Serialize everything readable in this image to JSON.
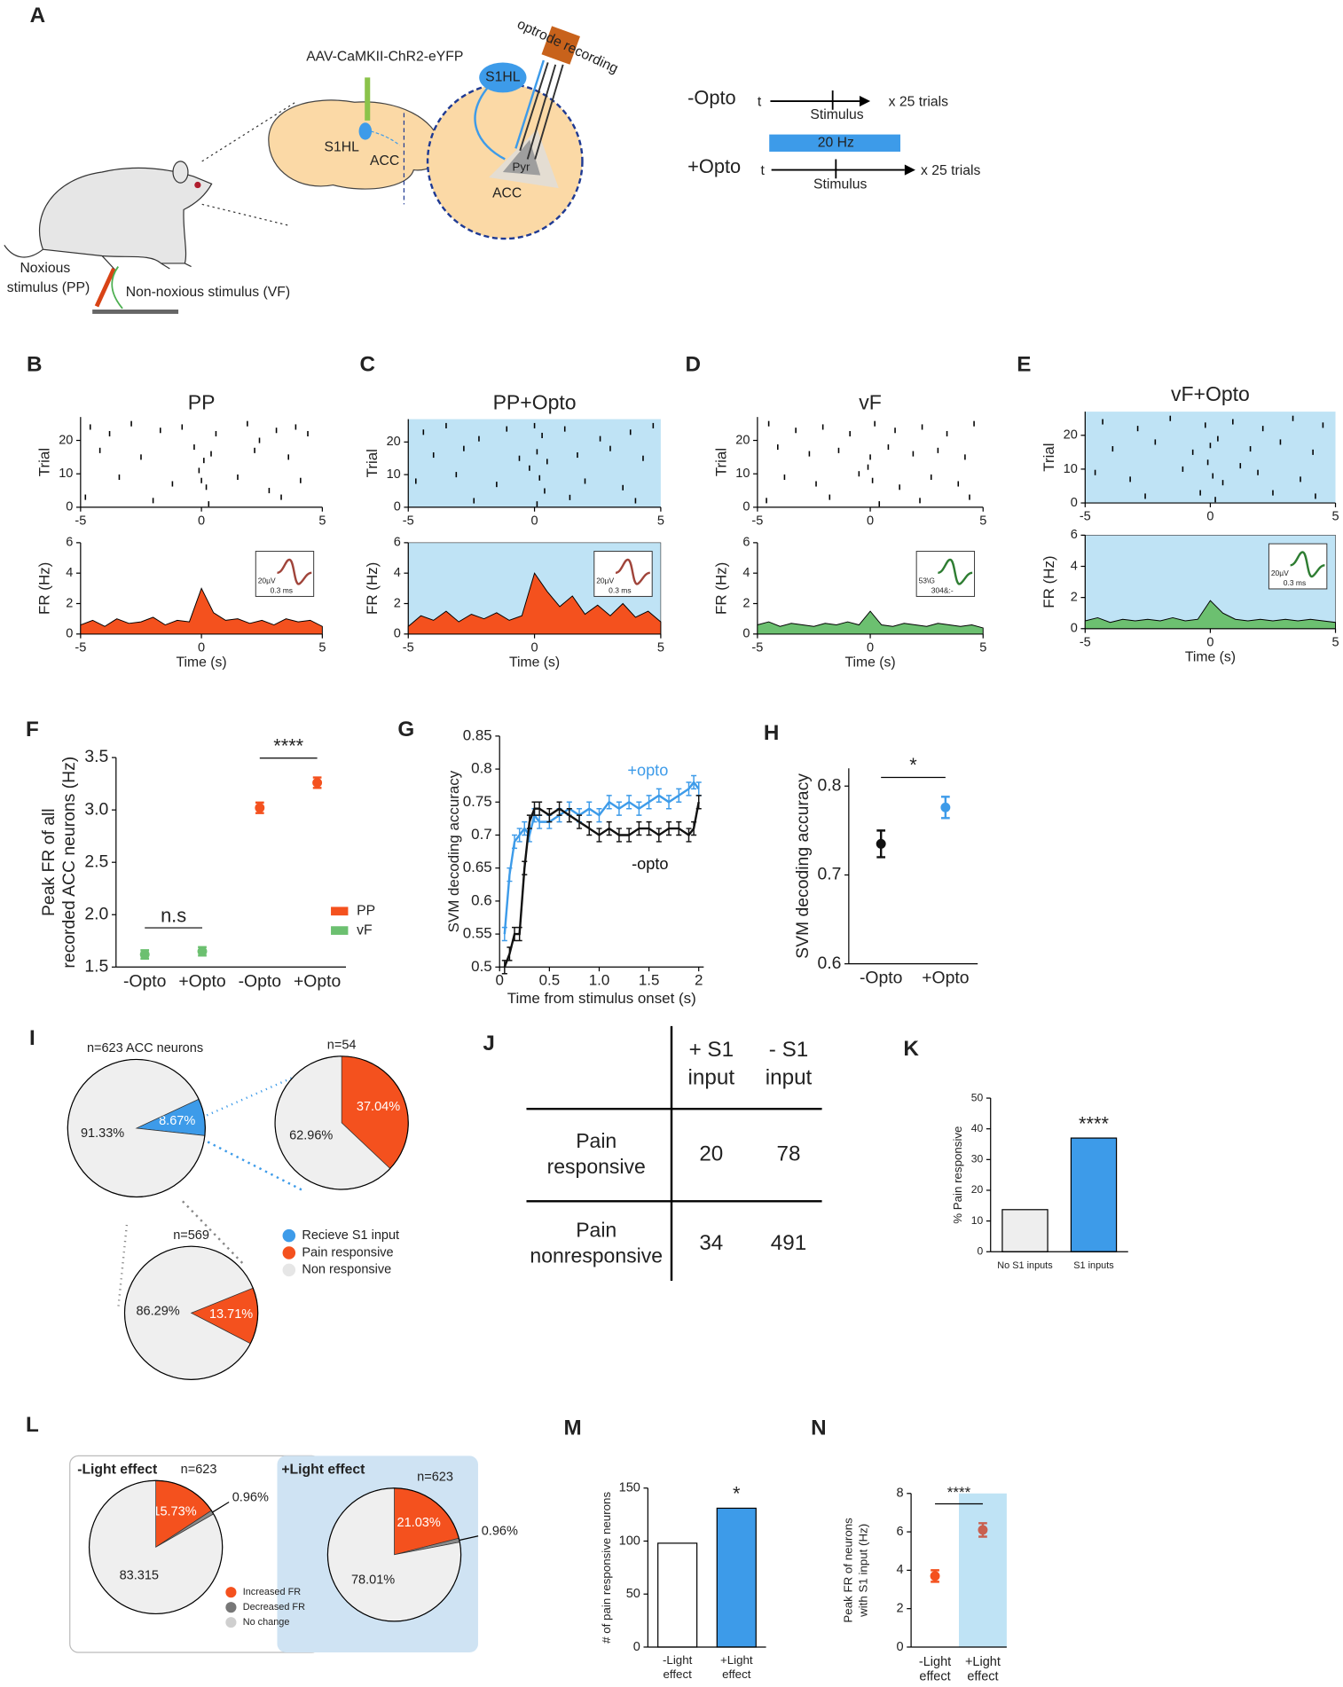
{
  "panel_labels": [
    "A",
    "B",
    "C",
    "D",
    "E",
    "F",
    "G",
    "H",
    "I",
    "J",
    "K",
    "L",
    "M",
    "N"
  ],
  "diagram": {
    "injection": "AAV-CaMKII-ChR2-eYFP",
    "brain_s1hl": "S1HL",
    "brain_acc": "ACC",
    "inset_s1hl": "S1HL",
    "inset_pyr": "Pyr",
    "inset_acc": "ACC",
    "optrode": "optrode recording",
    "noxious": [
      "Noxious",
      "stimulus (PP)"
    ],
    "non_noxious": "Non-noxious stimulus (VF)",
    "protocol": {
      "minus_opto": "-Opto",
      "plus_opto": "+Opto",
      "t": "t",
      "stimulus": "Stimulus",
      "trials": "x 25 trials",
      "light": "20 Hz"
    }
  },
  "table_j": {
    "columns": [
      [
        "+ S1",
        "input"
      ],
      [
        "- S1",
        "input"
      ]
    ],
    "rows": [
      {
        "label": [
          "Pain",
          "responsive"
        ],
        "cells": [
          20,
          78
        ]
      },
      {
        "label": [
          "Pain",
          "nonresponsive"
        ],
        "cells": [
          34,
          491
        ]
      }
    ]
  },
  "chart_data": [
    {
      "type": "raster_psth",
      "title": "PP",
      "color": "#f4511e",
      "shaded": false,
      "raster_ylabel": "Trial",
      "raster_ylim": [
        0,
        27
      ],
      "raster_yticks": [
        0,
        10,
        20
      ],
      "raster": [
        [
          -4.6,
          24
        ],
        [
          -3.8,
          22
        ],
        [
          -2.9,
          25
        ],
        [
          -1.7,
          23
        ],
        [
          -0.8,
          24
        ],
        [
          0.6,
          22
        ],
        [
          1.9,
          25
        ],
        [
          3.1,
          23
        ],
        [
          4.4,
          22
        ],
        [
          -4.2,
          17
        ],
        [
          -2.5,
          15
        ],
        [
          -0.3,
          18
        ],
        [
          0.1,
          14
        ],
        [
          0.4,
          16
        ],
        [
          2.2,
          17
        ],
        [
          3.6,
          15
        ],
        [
          -3.4,
          9
        ],
        [
          -1.2,
          7
        ],
        [
          0,
          8
        ],
        [
          0.2,
          6
        ],
        [
          1.5,
          9
        ],
        [
          2.8,
          5
        ],
        [
          4.1,
          8
        ],
        [
          -4.8,
          3
        ],
        [
          -2,
          2
        ],
        [
          0.3,
          1
        ],
        [
          3.3,
          3
        ],
        [
          2.4,
          20
        ],
        [
          3.9,
          24
        ],
        [
          -0.1,
          11
        ]
      ],
      "ylabel": "FR (Hz)",
      "xlabel": "Time (s)",
      "xlim": [
        -5,
        5
      ],
      "xticks": [
        -5,
        0,
        5
      ],
      "ylim": [
        0,
        6
      ],
      "yticks": [
        0,
        2,
        4,
        6
      ],
      "x": [
        -5,
        -4.5,
        -4,
        -3.5,
        -3,
        -2.5,
        -2,
        -1.5,
        -1,
        -0.5,
        0,
        0.5,
        1,
        1.5,
        2,
        2.5,
        3,
        3.5,
        4,
        4.5,
        5
      ],
      "values": [
        0.6,
        0.9,
        0.5,
        1.0,
        0.7,
        0.8,
        1.1,
        0.6,
        0.9,
        0.8,
        3.0,
        1.4,
        0.9,
        1.0,
        0.7,
        0.9,
        0.6,
        1.0,
        0.8,
        0.9,
        0.5
      ],
      "inset_labels": [
        "20µV",
        "0.3 ms"
      ],
      "inset_color": "#a0443a"
    },
    {
      "type": "raster_psth",
      "title": "PP+Opto",
      "color": "#f4511e",
      "shaded": true,
      "raster_ylabel": "Trial",
      "raster_ylim": [
        0,
        27
      ],
      "raster_yticks": [
        0,
        10,
        20
      ],
      "raster": [
        [
          -4.4,
          23
        ],
        [
          -3.5,
          25
        ],
        [
          -2.2,
          21
        ],
        [
          -1.1,
          24
        ],
        [
          0,
          25
        ],
        [
          0.3,
          22
        ],
        [
          1.2,
          24
        ],
        [
          2.6,
          21
        ],
        [
          3.8,
          23
        ],
        [
          4.7,
          25
        ],
        [
          -4,
          16
        ],
        [
          -2.8,
          18
        ],
        [
          -0.6,
          15
        ],
        [
          0.1,
          17
        ],
        [
          0.5,
          14
        ],
        [
          1.7,
          16
        ],
        [
          3,
          18
        ],
        [
          4.3,
          15
        ],
        [
          -4.7,
          8
        ],
        [
          -3.1,
          10
        ],
        [
          -1.5,
          7
        ],
        [
          0.2,
          9
        ],
        [
          0.4,
          5
        ],
        [
          2,
          8
        ],
        [
          3.5,
          6
        ],
        [
          -2.4,
          2
        ],
        [
          0.1,
          1
        ],
        [
          1.4,
          3
        ],
        [
          4,
          2
        ],
        [
          -0.2,
          12
        ]
      ],
      "ylabel": "FR (Hz)",
      "xlabel": "Time (s)",
      "xlim": [
        -5,
        5
      ],
      "xticks": [
        -5,
        0,
        5
      ],
      "ylim": [
        0,
        6
      ],
      "yticks": [
        0,
        2,
        4,
        6
      ],
      "x": [
        -5,
        -4.5,
        -4,
        -3.5,
        -3,
        -2.5,
        -2,
        -1.5,
        -1,
        -0.5,
        0,
        0.5,
        1,
        1.5,
        2,
        2.5,
        3,
        3.5,
        4,
        4.5,
        5
      ],
      "values": [
        0.5,
        1.2,
        0.9,
        1.5,
        0.8,
        1.3,
        1.0,
        1.4,
        0.9,
        1.2,
        4.0,
        2.8,
        1.8,
        2.5,
        1.3,
        1.9,
        1.2,
        2.0,
        1.1,
        1.5,
        0.8
      ],
      "inset_labels": [
        "20µV",
        "0.3 ms"
      ],
      "inset_color": "#a0443a"
    },
    {
      "type": "raster_psth",
      "title": "vF",
      "color": "#6cc070",
      "shaded": false,
      "raster_ylabel": "Trial",
      "raster_ylim": [
        0,
        27
      ],
      "raster_yticks": [
        0,
        10,
        20
      ],
      "raster": [
        [
          -4.5,
          25
        ],
        [
          -3.3,
          23
        ],
        [
          -2.1,
          24
        ],
        [
          -0.9,
          22
        ],
        [
          0.2,
          25
        ],
        [
          1.1,
          23
        ],
        [
          2.3,
          24
        ],
        [
          3.4,
          22
        ],
        [
          4.6,
          25
        ],
        [
          -4.1,
          18
        ],
        [
          -2.7,
          16
        ],
        [
          -1.4,
          17
        ],
        [
          0,
          15
        ],
        [
          0.8,
          18
        ],
        [
          1.9,
          16
        ],
        [
          3,
          17
        ],
        [
          4.2,
          15
        ],
        [
          -3.8,
          9
        ],
        [
          -2.4,
          7
        ],
        [
          -0.5,
          10
        ],
        [
          0.1,
          8
        ],
        [
          1.3,
          6
        ],
        [
          2.7,
          9
        ],
        [
          3.9,
          7
        ],
        [
          -4.6,
          2
        ],
        [
          -1.8,
          3
        ],
        [
          0.4,
          1
        ],
        [
          2.2,
          2
        ],
        [
          4.4,
          3
        ],
        [
          -0.1,
          12
        ]
      ],
      "ylabel": "FR (Hz)",
      "xlabel": "Time (s)",
      "xlim": [
        -5,
        5
      ],
      "xticks": [
        -5,
        0,
        5
      ],
      "ylim": [
        0,
        6
      ],
      "yticks": [
        0,
        2,
        4,
        6
      ],
      "x": [
        -5,
        -4.5,
        -4,
        -3.5,
        -3,
        -2.5,
        -2,
        -1.5,
        -1,
        -0.5,
        0,
        0.5,
        1,
        1.5,
        2,
        2.5,
        3,
        3.5,
        4,
        4.5,
        5
      ],
      "values": [
        0.6,
        0.8,
        0.5,
        0.7,
        0.6,
        0.5,
        0.7,
        0.6,
        0.8,
        0.6,
        1.5,
        0.6,
        0.5,
        0.7,
        0.6,
        0.5,
        0.7,
        0.6,
        0.5,
        0.6,
        0.4
      ],
      "inset_labels": [
        "53\\G",
        "304&:-"
      ],
      "inset_color": "#2e7d32"
    },
    {
      "type": "raster_psth",
      "title": "vF+Opto",
      "color": "#6cc070",
      "shaded": true,
      "raster_ylabel": "Trial",
      "raster_ylim": [
        0,
        27
      ],
      "raster_yticks": [
        0,
        10,
        20
      ],
      "raster": [
        [
          -4.3,
          24
        ],
        [
          -2.9,
          22
        ],
        [
          -1.6,
          25
        ],
        [
          -0.2,
          23
        ],
        [
          0.9,
          24
        ],
        [
          2.1,
          22
        ],
        [
          3.3,
          25
        ],
        [
          4.5,
          23
        ],
        [
          -3.9,
          16
        ],
        [
          -2.2,
          18
        ],
        [
          -0.7,
          15
        ],
        [
          0,
          17
        ],
        [
          0.3,
          19
        ],
        [
          1.6,
          16
        ],
        [
          2.8,
          18
        ],
        [
          4.1,
          15
        ],
        [
          -4.6,
          9
        ],
        [
          -3.2,
          7
        ],
        [
          -1.1,
          10
        ],
        [
          0.1,
          8
        ],
        [
          0.5,
          6
        ],
        [
          1.9,
          9
        ],
        [
          3.6,
          7
        ],
        [
          -2.6,
          2
        ],
        [
          -0.4,
          3
        ],
        [
          0.2,
          1
        ],
        [
          2.5,
          3
        ],
        [
          4.2,
          2
        ],
        [
          -0.1,
          12
        ],
        [
          1.2,
          11
        ]
      ],
      "ylabel": "FR (Hz)",
      "xlabel": "Time (s)",
      "xlim": [
        -5,
        5
      ],
      "xticks": [
        -5,
        0,
        5
      ],
      "ylim": [
        0,
        6
      ],
      "yticks": [
        0,
        2,
        4,
        6
      ],
      "x": [
        -5,
        -4.5,
        -4,
        -3.5,
        -3,
        -2.5,
        -2,
        -1.5,
        -1,
        -0.5,
        0,
        0.5,
        1,
        1.5,
        2,
        2.5,
        3,
        3.5,
        4,
        4.5,
        5
      ],
      "values": [
        0.5,
        0.7,
        0.4,
        0.6,
        0.5,
        0.6,
        0.5,
        0.7,
        0.5,
        0.6,
        1.8,
        1.0,
        0.6,
        0.5,
        0.6,
        0.5,
        0.6,
        0.5,
        0.6,
        0.5,
        0.4
      ],
      "inset_labels": [
        "20µV",
        "0.3 ms"
      ],
      "inset_color": "#2e7d32"
    },
    {
      "type": "errorbar",
      "ylabel": [
        "Peak FR of all",
        "recorded ACC neurons (Hz)"
      ],
      "categories": [
        "-Opto",
        "+Opto",
        "-Opto",
        "+Opto"
      ],
      "ylim": [
        1.5,
        3.5
      ],
      "yticks": [
        1.5,
        {
          "value": 2,
          "label": "2.0"
        },
        2.5,
        {
          "value": 3,
          "label": "3.0"
        },
        3.5
      ],
      "series": [
        {
          "name": "PP",
          "color": "#f4511e",
          "values": [
            null,
            null,
            3.02,
            3.26
          ],
          "errors": [
            null,
            null,
            0.05,
            0.05
          ]
        },
        {
          "name": "vF",
          "color": "#6cc070",
          "values": [
            1.62,
            1.65,
            null,
            null
          ],
          "errors": [
            0.04,
            0.04,
            null,
            null
          ]
        }
      ],
      "annotations": [
        "n.s",
        "****"
      ]
    },
    {
      "type": "line",
      "ylabel": "SVM decoding accuracy",
      "xlabel": "Time from stimulus onset (s)",
      "xlim": [
        0,
        2.05
      ],
      "xticks": [
        0,
        0.5,
        {
          "value": 1,
          "label": "1.0"
        },
        1.5,
        2
      ],
      "ylim": [
        0.5,
        0.85
      ],
      "yticks": [
        0.5,
        0.55,
        0.6,
        0.65,
        0.7,
        0.75,
        0.8,
        0.85
      ],
      "x": [
        0.05,
        0.1,
        0.15,
        0.2,
        0.25,
        0.3,
        0.35,
        0.4,
        0.5,
        0.6,
        0.7,
        0.8,
        0.9,
        1.0,
        1.1,
        1.2,
        1.3,
        1.4,
        1.5,
        1.6,
        1.7,
        1.8,
        1.9,
        1.95,
        2.0
      ],
      "series": [
        {
          "name": "+opto",
          "color": "#3d9be9",
          "error": 0.01,
          "values": [
            0.55,
            0.64,
            0.69,
            0.7,
            0.71,
            0.7,
            0.73,
            0.72,
            0.72,
            0.73,
            0.74,
            0.73,
            0.74,
            0.73,
            0.75,
            0.74,
            0.75,
            0.74,
            0.75,
            0.76,
            0.75,
            0.76,
            0.77,
            0.78,
            0.77
          ]
        },
        {
          "name": "-opto",
          "color": "#111111",
          "error": 0.01,
          "values": [
            0.5,
            0.52,
            0.55,
            0.55,
            0.65,
            0.72,
            0.74,
            0.74,
            0.73,
            0.74,
            0.73,
            0.72,
            0.71,
            0.7,
            0.71,
            0.7,
            0.7,
            0.71,
            0.71,
            0.7,
            0.71,
            0.71,
            0.7,
            0.71,
            0.75
          ]
        }
      ]
    },
    {
      "type": "errorbar",
      "ylabel": "SVM decoding accuracy",
      "categories": [
        "-Opto",
        "+Opto"
      ],
      "ylim": [
        0.6,
        0.82
      ],
      "yticks": [
        0.6,
        0.7,
        0.8
      ],
      "series": [
        {
          "colors": [
            "#111111",
            "#3d9be9"
          ],
          "values": [
            0.735,
            0.776
          ],
          "errors": [
            0.015,
            0.012
          ]
        }
      ],
      "annotations": [
        "*"
      ]
    },
    {
      "type": "pie",
      "title": "n=623 ACC neurons",
      "values": [
        8.67,
        91.33
      ],
      "value_labels": [
        "8.67%",
        "91.33%"
      ],
      "colors": [
        "#3d9be9",
        "#efefef"
      ],
      "legend": [
        {
          "name": "Recieve S1 input",
          "color": "#3d9be9"
        },
        {
          "name": "Pain responsive",
          "color": "#f4511e"
        },
        {
          "name": "Non responsive",
          "color": "#e6e6e6"
        }
      ]
    },
    {
      "type": "pie",
      "title": "n=54",
      "values": [
        37.04,
        62.96
      ],
      "value_labels": [
        "37.04%",
        "62.96%"
      ],
      "colors": [
        "#f4511e",
        "#efefef"
      ]
    },
    {
      "type": "pie",
      "title": "n=569",
      "values": [
        13.71,
        86.29
      ],
      "value_labels": [
        "13.71%",
        "86.29%"
      ],
      "colors": [
        "#f4511e",
        "#efefef"
      ]
    },
    {
      "type": "bar",
      "ylabel": "% Pain responsive",
      "categories": [
        "No S1 inputs",
        "S1 inputs"
      ],
      "values": [
        13.7,
        37.0
      ],
      "colors": [
        "#eeeeee",
        "#3d9be9"
      ],
      "ylim": [
        0,
        50
      ],
      "yticks": [
        0,
        10,
        20,
        30,
        40,
        50
      ],
      "annotations": [
        "****"
      ]
    },
    {
      "type": "pie",
      "heading": "-Light effect",
      "title": "n=623",
      "values": [
        15.73,
        0.96,
        83.315
      ],
      "value_labels": [
        "15.73%",
        "0.96%",
        "83.315"
      ],
      "colors": [
        "#f4511e",
        "#8a8a8a",
        "#efefef"
      ],
      "legend": [
        {
          "name": "Increased FR",
          "color": "#f4511e"
        },
        {
          "name": "Decreased FR",
          "color": "#777777"
        },
        {
          "name": "No change",
          "color": "#cfcfcf"
        }
      ]
    },
    {
      "type": "pie",
      "heading": "+Light effect",
      "title": "n=623",
      "values": [
        21.03,
        0.96,
        78.01
      ],
      "value_labels": [
        "21.03%",
        "0.96%",
        "78.01%"
      ],
      "colors": [
        "#f4511e",
        "#8a8a8a",
        "#efefef"
      ]
    },
    {
      "type": "bar",
      "ylabel": "# of pain responsive neurons",
      "categories": [
        [
          "-Light",
          "effect"
        ],
        [
          "+Light",
          "effect"
        ]
      ],
      "values": [
        98,
        131
      ],
      "colors": [
        "#ffffff",
        "#3d9be9"
      ],
      "ylim": [
        0,
        150
      ],
      "yticks": [
        0,
        50,
        100,
        150
      ],
      "annotations": [
        "*"
      ]
    },
    {
      "type": "errorbar",
      "shaded": true,
      "ylabel": [
        "Peak FR of neurons",
        "with S1 input  (Hz)"
      ],
      "categories": [
        [
          "-Light",
          "effect"
        ],
        [
          "+Light",
          "effect"
        ]
      ],
      "ylim": [
        0,
        8
      ],
      "yticks": [
        0,
        2,
        4,
        6,
        8
      ],
      "series": [
        {
          "colors": [
            "#f4511e",
            "#c9604f"
          ],
          "values": [
            3.7,
            6.1
          ],
          "errors": [
            0.3,
            0.35
          ]
        }
      ],
      "annotations": [
        "****"
      ]
    }
  ]
}
